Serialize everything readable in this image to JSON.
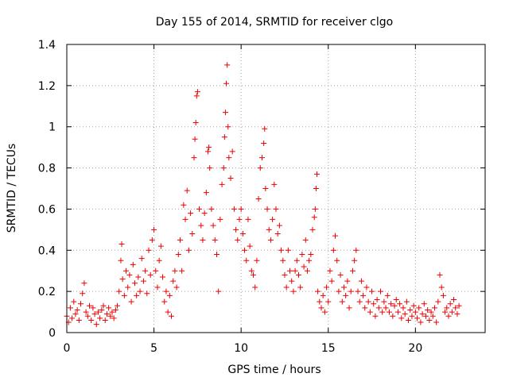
{
  "chart_data": {
    "type": "scatter",
    "title": "Day 155 of 2014, SRMTID for receiver clgo",
    "xlabel": "GPS time / hours",
    "ylabel": "SRMTID / TECUs",
    "xlim": [
      0,
      24
    ],
    "ylim": [
      0,
      1.4
    ],
    "x_ticks": [
      0,
      5,
      10,
      15,
      20
    ],
    "y_ticks": [
      0,
      0.2,
      0.4,
      0.6,
      0.8,
      1,
      1.2,
      1.4
    ],
    "x_tick_labels": [
      "0",
      "5",
      "10",
      "15",
      "20"
    ],
    "y_tick_labels": [
      "0",
      "0.2",
      "0.4",
      "0.6",
      "0.8",
      "1",
      "1.2",
      "1.4"
    ],
    "grid": true,
    "marker": "+",
    "color": "#ee0000",
    "series": [
      {
        "name": "SRMTID",
        "points": [
          [
            0.0,
            0.08
          ],
          [
            0.1,
            0.05
          ],
          [
            0.2,
            0.12
          ],
          [
            0.3,
            0.07
          ],
          [
            0.4,
            0.15
          ],
          [
            0.5,
            0.09
          ],
          [
            0.6,
            0.11
          ],
          [
            0.7,
            0.06
          ],
          [
            0.8,
            0.14
          ],
          [
            0.9,
            0.19
          ],
          [
            1.0,
            0.24
          ],
          [
            1.1,
            0.1
          ],
          [
            1.2,
            0.08
          ],
          [
            1.3,
            0.13
          ],
          [
            1.4,
            0.06
          ],
          [
            1.5,
            0.12
          ],
          [
            1.6,
            0.09
          ],
          [
            1.7,
            0.04
          ],
          [
            1.8,
            0.1
          ],
          [
            1.9,
            0.07
          ],
          [
            2.0,
            0.11
          ],
          [
            2.1,
            0.13
          ],
          [
            2.2,
            0.06
          ],
          [
            2.3,
            0.09
          ],
          [
            2.4,
            0.12
          ],
          [
            2.5,
            0.08
          ],
          [
            2.6,
            0.1
          ],
          [
            2.7,
            0.07
          ],
          [
            2.8,
            0.11
          ],
          [
            2.9,
            0.13
          ],
          [
            3.0,
            0.2
          ],
          [
            3.1,
            0.35
          ],
          [
            3.15,
            0.43
          ],
          [
            3.2,
            0.26
          ],
          [
            3.3,
            0.18
          ],
          [
            3.4,
            0.3
          ],
          [
            3.5,
            0.22
          ],
          [
            3.6,
            0.28
          ],
          [
            3.7,
            0.15
          ],
          [
            3.8,
            0.33
          ],
          [
            3.9,
            0.24
          ],
          [
            4.0,
            0.18
          ],
          [
            4.1,
            0.27
          ],
          [
            4.2,
            0.2
          ],
          [
            4.3,
            0.36
          ],
          [
            4.4,
            0.25
          ],
          [
            4.5,
            0.3
          ],
          [
            4.6,
            0.19
          ],
          [
            4.7,
            0.4
          ],
          [
            4.8,
            0.28
          ],
          [
            4.9,
            0.45
          ],
          [
            5.0,
            0.5
          ],
          [
            5.1,
            0.3
          ],
          [
            5.2,
            0.22
          ],
          [
            5.3,
            0.35
          ],
          [
            5.4,
            0.42
          ],
          [
            5.5,
            0.27
          ],
          [
            5.6,
            0.15
          ],
          [
            5.7,
            0.2
          ],
          [
            5.8,
            0.1
          ],
          [
            5.9,
            0.18
          ],
          [
            6.0,
            0.08
          ],
          [
            6.1,
            0.25
          ],
          [
            6.2,
            0.3
          ],
          [
            6.3,
            0.22
          ],
          [
            6.4,
            0.38
          ],
          [
            6.5,
            0.45
          ],
          [
            6.6,
            0.3
          ],
          [
            6.7,
            0.62
          ],
          [
            6.8,
            0.55
          ],
          [
            6.9,
            0.69
          ],
          [
            7.0,
            0.4
          ],
          [
            7.1,
            0.58
          ],
          [
            7.2,
            0.48
          ],
          [
            7.3,
            0.85
          ],
          [
            7.35,
            0.94
          ],
          [
            7.4,
            1.02
          ],
          [
            7.45,
            1.15
          ],
          [
            7.5,
            1.17
          ],
          [
            7.6,
            0.6
          ],
          [
            7.7,
            0.52
          ],
          [
            7.8,
            0.45
          ],
          [
            7.9,
            0.58
          ],
          [
            8.0,
            0.68
          ],
          [
            8.1,
            0.88
          ],
          [
            8.15,
            0.9
          ],
          [
            8.2,
            0.8
          ],
          [
            8.3,
            0.6
          ],
          [
            8.4,
            0.52
          ],
          [
            8.5,
            0.45
          ],
          [
            8.6,
            0.38
          ],
          [
            8.7,
            0.2
          ],
          [
            8.8,
            0.55
          ],
          [
            8.9,
            0.72
          ],
          [
            9.0,
            0.8
          ],
          [
            9.05,
            0.95
          ],
          [
            9.1,
            1.07
          ],
          [
            9.15,
            1.21
          ],
          [
            9.2,
            1.3
          ],
          [
            9.25,
            1.0
          ],
          [
            9.3,
            0.85
          ],
          [
            9.4,
            0.75
          ],
          [
            9.5,
            0.88
          ],
          [
            9.6,
            0.6
          ],
          [
            9.7,
            0.5
          ],
          [
            9.8,
            0.45
          ],
          [
            9.9,
            0.55
          ],
          [
            10.0,
            0.6
          ],
          [
            10.1,
            0.48
          ],
          [
            10.2,
            0.4
          ],
          [
            10.3,
            0.35
          ],
          [
            10.4,
            0.55
          ],
          [
            10.5,
            0.42
          ],
          [
            10.6,
            0.3
          ],
          [
            10.7,
            0.28
          ],
          [
            10.8,
            0.22
          ],
          [
            10.9,
            0.35
          ],
          [
            11.0,
            0.65
          ],
          [
            11.1,
            0.8
          ],
          [
            11.2,
            0.85
          ],
          [
            11.3,
            0.92
          ],
          [
            11.35,
            0.99
          ],
          [
            11.4,
            0.7
          ],
          [
            11.5,
            0.6
          ],
          [
            11.6,
            0.5
          ],
          [
            11.7,
            0.45
          ],
          [
            11.8,
            0.55
          ],
          [
            11.9,
            0.72
          ],
          [
            12.0,
            0.6
          ],
          [
            12.1,
            0.48
          ],
          [
            12.2,
            0.52
          ],
          [
            12.3,
            0.4
          ],
          [
            12.4,
            0.35
          ],
          [
            12.5,
            0.28
          ],
          [
            12.6,
            0.22
          ],
          [
            12.7,
            0.4
          ],
          [
            12.8,
            0.3
          ],
          [
            12.9,
            0.25
          ],
          [
            13.0,
            0.2
          ],
          [
            13.1,
            0.3
          ],
          [
            13.2,
            0.35
          ],
          [
            13.3,
            0.28
          ],
          [
            13.4,
            0.22
          ],
          [
            13.5,
            0.38
          ],
          [
            13.6,
            0.32
          ],
          [
            13.7,
            0.45
          ],
          [
            13.8,
            0.3
          ],
          [
            13.9,
            0.35
          ],
          [
            14.0,
            0.38
          ],
          [
            14.1,
            0.5
          ],
          [
            14.2,
            0.56
          ],
          [
            14.25,
            0.6
          ],
          [
            14.3,
            0.7
          ],
          [
            14.35,
            0.77
          ],
          [
            14.4,
            0.2
          ],
          [
            14.5,
            0.15
          ],
          [
            14.6,
            0.12
          ],
          [
            14.7,
            0.18
          ],
          [
            14.8,
            0.1
          ],
          [
            14.9,
            0.22
          ],
          [
            15.0,
            0.15
          ],
          [
            15.1,
            0.3
          ],
          [
            15.2,
            0.25
          ],
          [
            15.3,
            0.4
          ],
          [
            15.4,
            0.47
          ],
          [
            15.5,
            0.35
          ],
          [
            15.6,
            0.2
          ],
          [
            15.7,
            0.28
          ],
          [
            15.8,
            0.15
          ],
          [
            15.9,
            0.22
          ],
          [
            16.0,
            0.18
          ],
          [
            16.1,
            0.25
          ],
          [
            16.2,
            0.12
          ],
          [
            16.3,
            0.2
          ],
          [
            16.4,
            0.3
          ],
          [
            16.5,
            0.35
          ],
          [
            16.6,
            0.4
          ],
          [
            16.7,
            0.2
          ],
          [
            16.8,
            0.15
          ],
          [
            16.9,
            0.25
          ],
          [
            17.0,
            0.18
          ],
          [
            17.1,
            0.12
          ],
          [
            17.2,
            0.22
          ],
          [
            17.3,
            0.15
          ],
          [
            17.4,
            0.1
          ],
          [
            17.5,
            0.2
          ],
          [
            17.6,
            0.14
          ],
          [
            17.7,
            0.08
          ],
          [
            17.8,
            0.16
          ],
          [
            17.9,
            0.12
          ],
          [
            18.0,
            0.2
          ],
          [
            18.1,
            0.1
          ],
          [
            18.2,
            0.15
          ],
          [
            18.3,
            0.12
          ],
          [
            18.4,
            0.18
          ],
          [
            18.5,
            0.1
          ],
          [
            18.6,
            0.14
          ],
          [
            18.7,
            0.08
          ],
          [
            18.8,
            0.13
          ],
          [
            18.9,
            0.16
          ],
          [
            19.0,
            0.1
          ],
          [
            19.1,
            0.14
          ],
          [
            19.2,
            0.07
          ],
          [
            19.3,
            0.12
          ],
          [
            19.4,
            0.09
          ],
          [
            19.5,
            0.15
          ],
          [
            19.6,
            0.06
          ],
          [
            19.7,
            0.11
          ],
          [
            19.8,
            0.08
          ],
          [
            19.9,
            0.13
          ],
          [
            20.0,
            0.1
          ],
          [
            20.1,
            0.07
          ],
          [
            20.2,
            0.12
          ],
          [
            20.3,
            0.05
          ],
          [
            20.4,
            0.09
          ],
          [
            20.5,
            0.14
          ],
          [
            20.6,
            0.08
          ],
          [
            20.7,
            0.11
          ],
          [
            20.8,
            0.06
          ],
          [
            20.9,
            0.1
          ],
          [
            21.0,
            0.08
          ],
          [
            21.1,
            0.12
          ],
          [
            21.2,
            0.05
          ],
          [
            21.3,
            0.15
          ],
          [
            21.4,
            0.28
          ],
          [
            21.5,
            0.22
          ],
          [
            21.6,
            0.18
          ],
          [
            21.7,
            0.1
          ],
          [
            21.8,
            0.12
          ],
          [
            21.9,
            0.08
          ],
          [
            22.0,
            0.14
          ],
          [
            22.1,
            0.1
          ],
          [
            22.2,
            0.16
          ],
          [
            22.3,
            0.12
          ],
          [
            22.4,
            0.09
          ],
          [
            22.5,
            0.13
          ]
        ]
      }
    ]
  }
}
